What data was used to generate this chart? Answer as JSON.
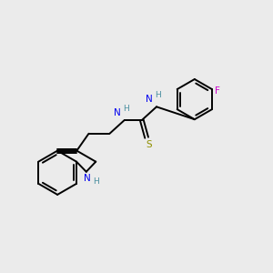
{
  "bg_color": "#ebebeb",
  "bond_color": "#000000",
  "N_color": "#0000ee",
  "H_color": "#4a8fa0",
  "S_color": "#909000",
  "F_color": "#cc00cc",
  "line_width": 1.4,
  "figsize": [
    3.0,
    3.0
  ],
  "dpi": 100,
  "xlim": [
    0,
    10
  ],
  "ylim": [
    0,
    10
  ]
}
